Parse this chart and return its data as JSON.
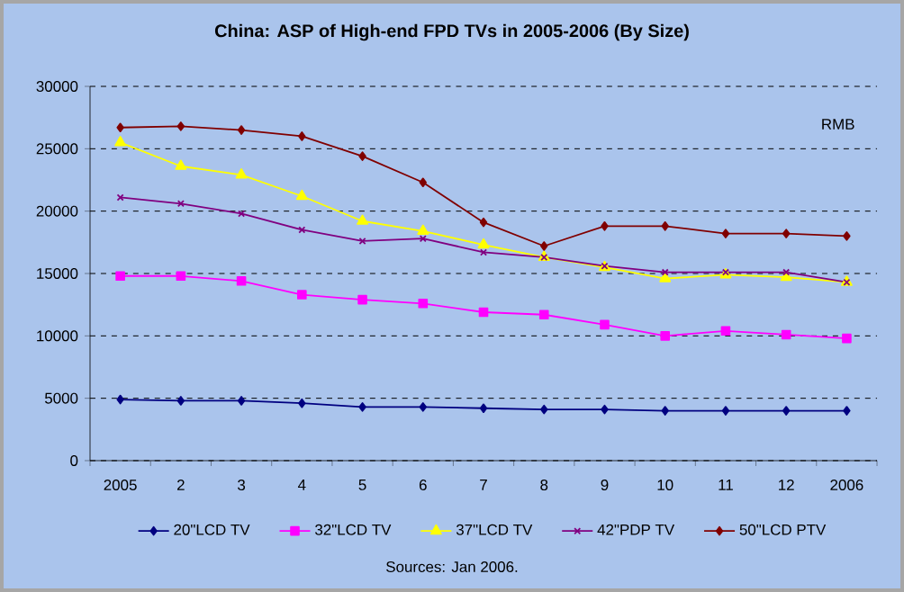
{
  "chart_data": {
    "type": "line",
    "title": "China: ASP of High-end FPD TVs in 2005-2006 (By Size)",
    "ylabel": "RMB",
    "categories": [
      "2005",
      "2",
      "3",
      "4",
      "5",
      "6",
      "7",
      "8",
      "9",
      "10",
      "11",
      "12",
      "2006"
    ],
    "series": [
      {
        "name": "20\"LCD TV",
        "color": "#000080",
        "marker": "diamond",
        "values": [
          4900,
          4800,
          4800,
          4600,
          4300,
          4300,
          4200,
          4100,
          4100,
          4000,
          4000,
          4000,
          4000
        ]
      },
      {
        "name": "32\"LCD TV",
        "color": "#ff00ff",
        "marker": "square",
        "values": [
          14800,
          14800,
          14400,
          13300,
          12900,
          12600,
          11900,
          11700,
          10900,
          10000,
          10400,
          10100,
          9800
        ]
      },
      {
        "name": "37\"LCD TV",
        "color": "#ffff00",
        "marker": "triangle",
        "values": [
          25500,
          23600,
          22900,
          21200,
          19200,
          18400,
          17300,
          16300,
          15500,
          14600,
          14900,
          14700,
          14300
        ]
      },
      {
        "name": "42\"PDP TV",
        "color": "#800080",
        "marker": "cross",
        "values": [
          21100,
          20600,
          19800,
          18500,
          17600,
          17800,
          16700,
          16300,
          15600,
          15100,
          15100,
          15100,
          14300
        ]
      },
      {
        "name": "50\"LCD PTV",
        "color": "#800000",
        "marker": "diamond",
        "values": [
          26700,
          26800,
          26500,
          26000,
          24400,
          22300,
          19100,
          17200,
          18800,
          18800,
          18200,
          18200,
          18000
        ]
      }
    ],
    "ylim": [
      0,
      30000
    ],
    "yticks": [
      0,
      5000,
      10000,
      15000,
      20000,
      25000,
      30000
    ],
    "grid": "y",
    "legend": "bottom",
    "line_style": "solid",
    "annotations": [
      "Sources: Jan 2006."
    ]
  }
}
